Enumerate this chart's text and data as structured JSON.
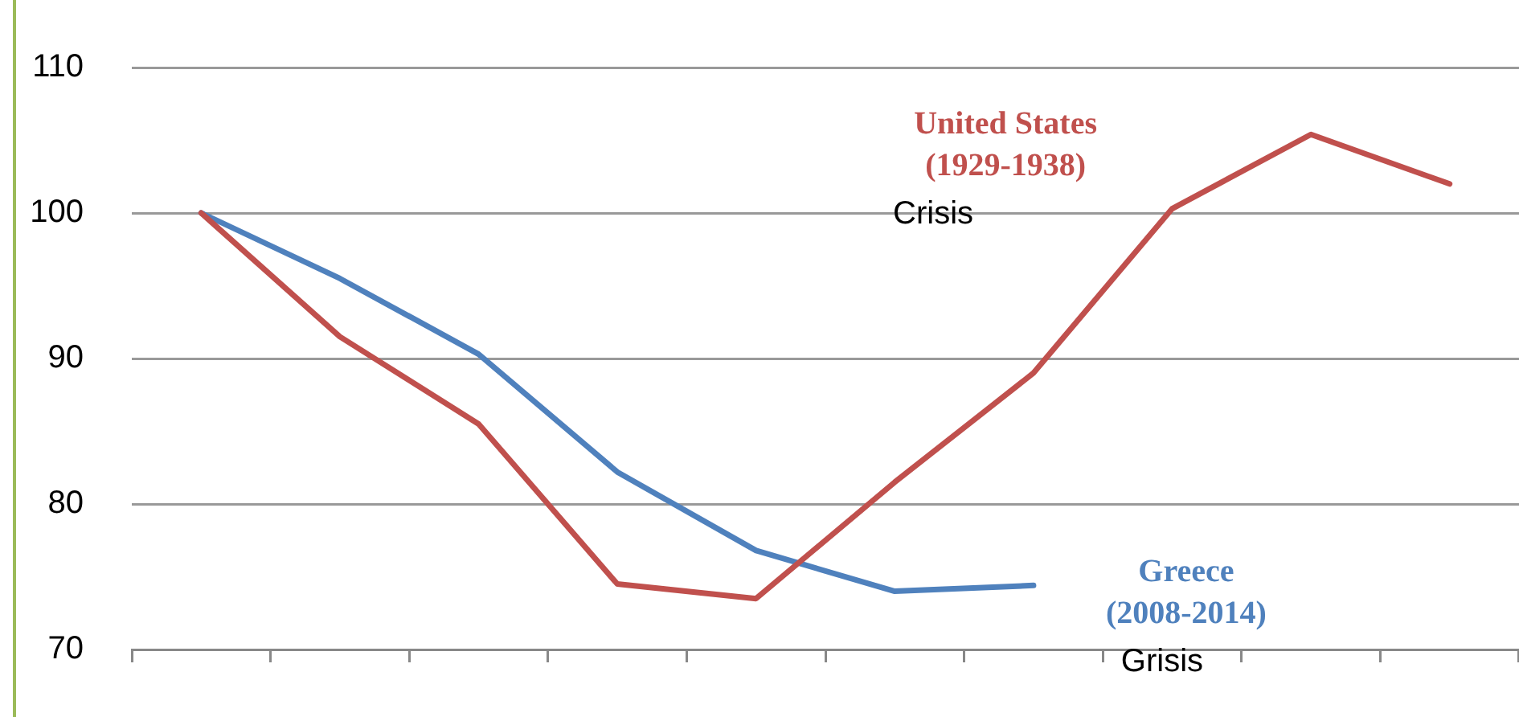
{
  "chart_data": {
    "type": "line",
    "categories": [
      null,
      null,
      null,
      null,
      null,
      null,
      null,
      null,
      null,
      null
    ],
    "series": [
      {
        "name": "United States\n(1929-1938)",
        "color": "#c0504d",
        "values": [
          100,
          91.5,
          85.5,
          74.5,
          73.5,
          81.5,
          89,
          100.3,
          105.4,
          102
        ]
      },
      {
        "name": "Greece\n(2008-2014)",
        "color": "#4f81bd",
        "values": [
          100,
          95.5,
          90.3,
          82.2,
          76.8,
          74,
          74.4,
          null,
          null,
          null
        ]
      }
    ],
    "annotations": [
      "Crisis",
      "Grisis"
    ],
    "ylim": [
      70,
      110
    ],
    "yticks": [
      70,
      80,
      90,
      100,
      110
    ],
    "grid": "y",
    "legend": false,
    "marker": "none",
    "line_style": "solid"
  }
}
